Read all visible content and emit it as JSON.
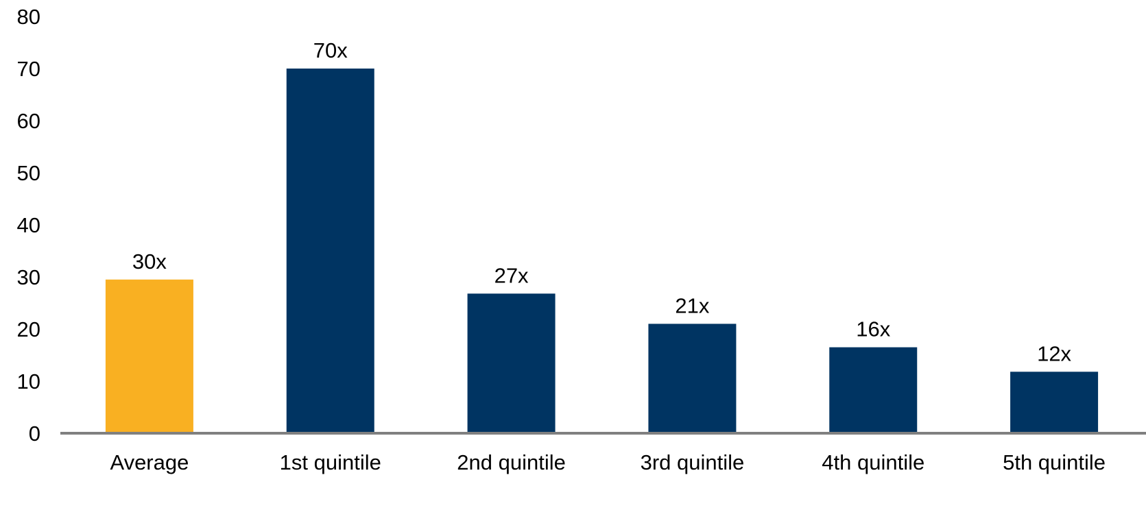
{
  "chart_data": {
    "type": "bar",
    "title": "",
    "xlabel": "",
    "ylabel": "",
    "categories": [
      "Average",
      "1st quintile",
      "2nd quintile",
      "3rd quintile",
      "4th quintile",
      "5th quintile"
    ],
    "values": [
      29.5,
      70,
      26.8,
      21,
      16.5,
      11.8
    ],
    "data_labels": [
      "30x",
      "70x",
      "27x",
      "21x",
      "16x",
      "12x"
    ],
    "bar_colors": [
      "#F9B022",
      "#003462",
      "#003462",
      "#003462",
      "#003462",
      "#003462"
    ],
    "ylim": [
      0,
      80
    ],
    "yticks": [
      0,
      10,
      20,
      30,
      40,
      50,
      60,
      70,
      80
    ],
    "grid": false,
    "legend": "none",
    "axis_color": "#808080"
  }
}
